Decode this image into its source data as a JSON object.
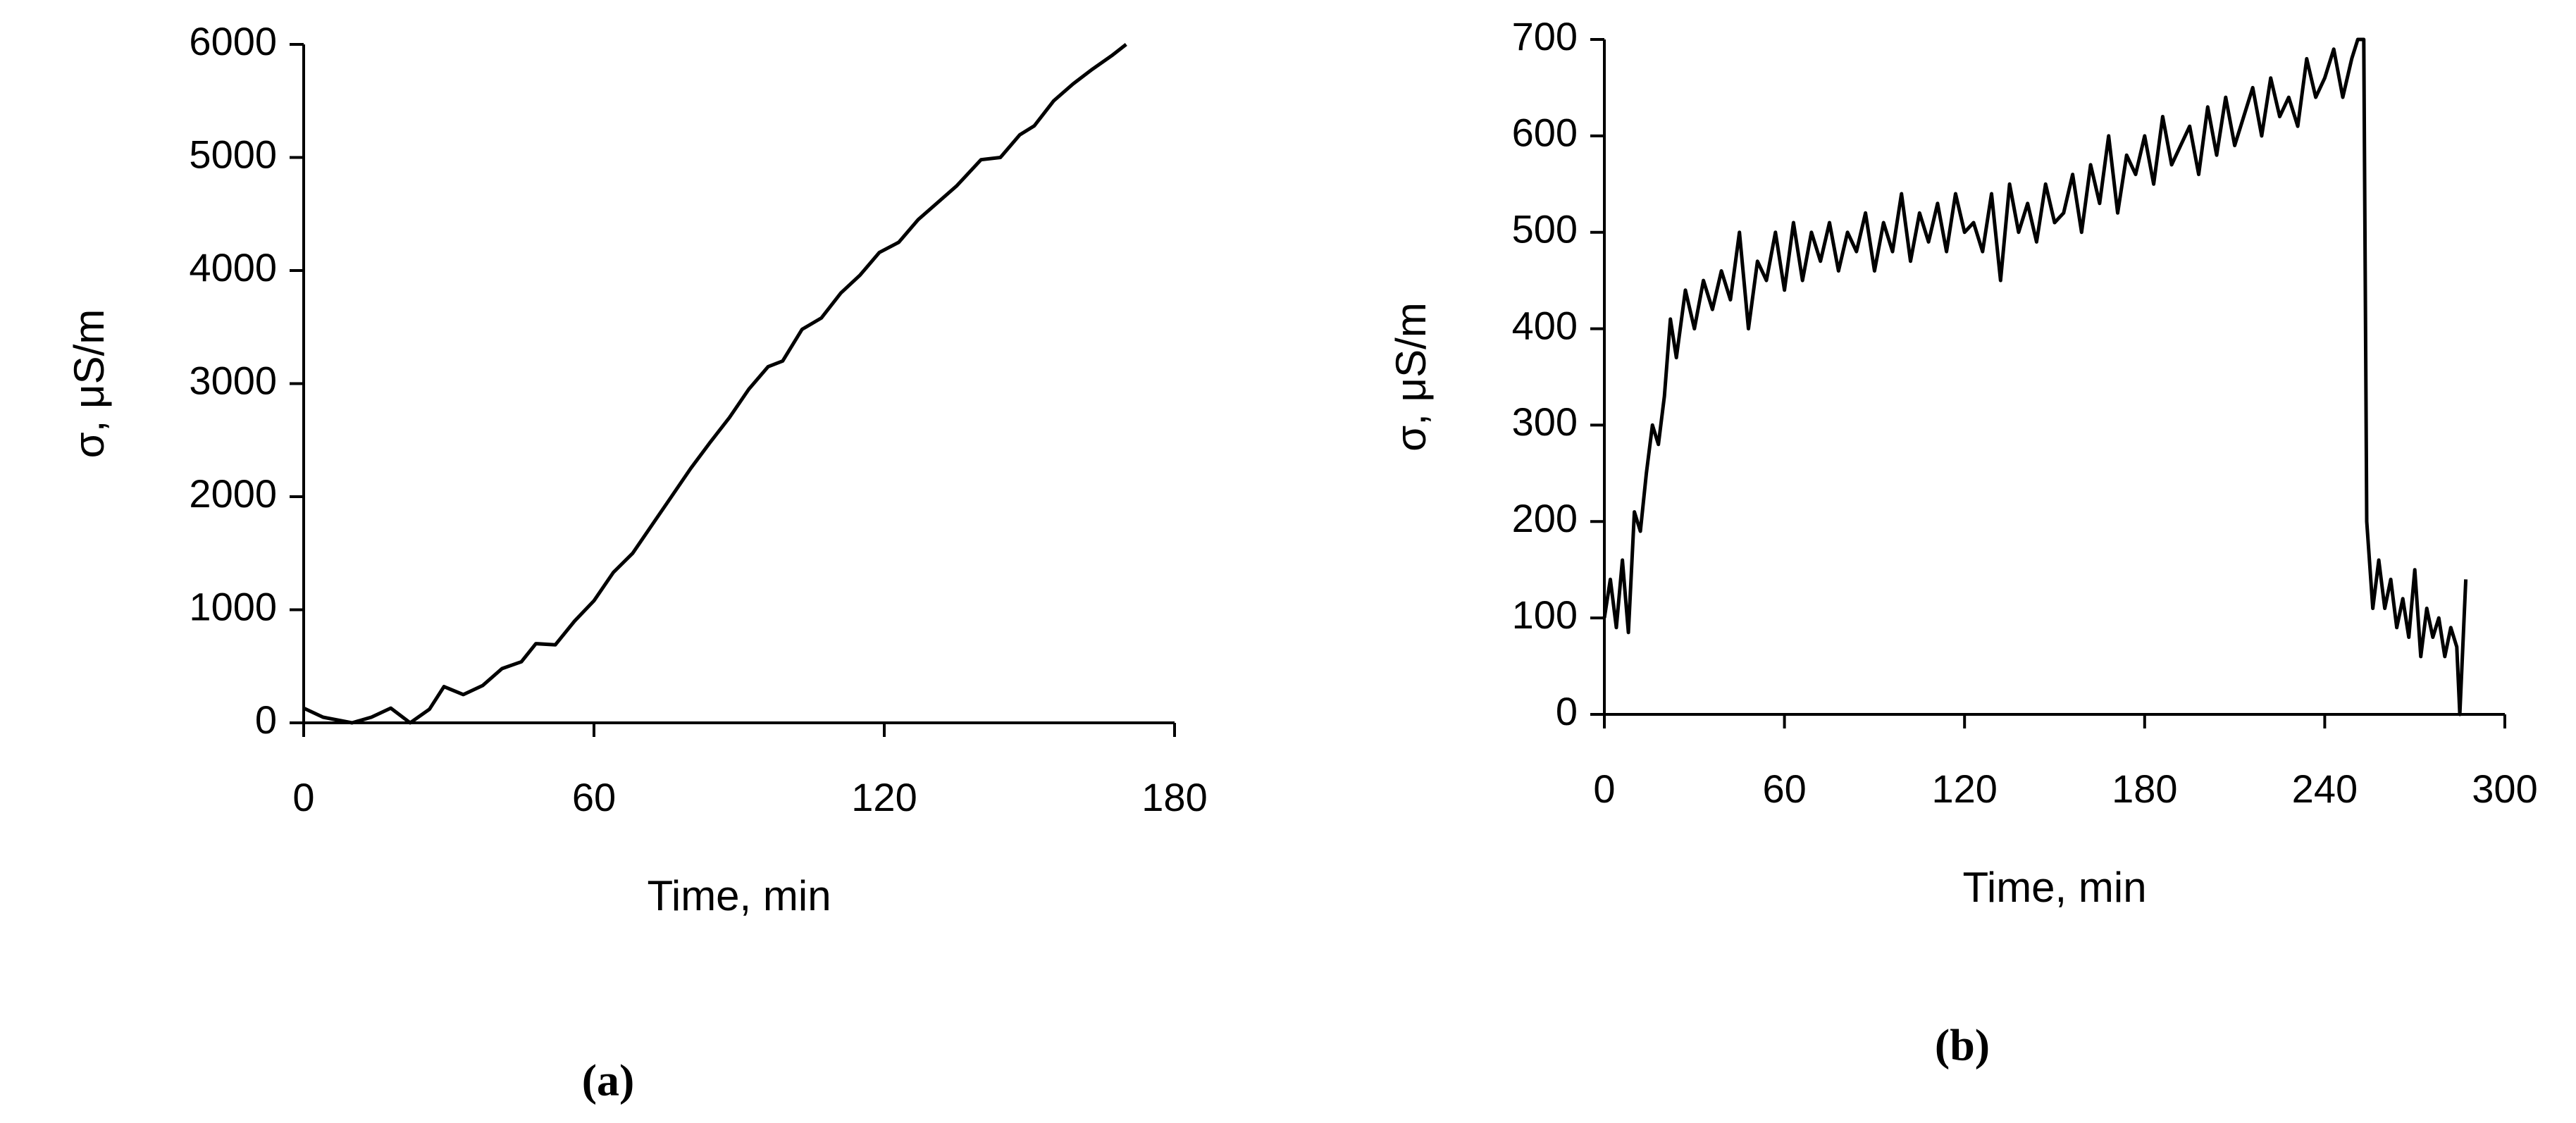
{
  "chart_data": [
    {
      "type": "line",
      "caption": "(a)",
      "xlabel": "Time, min",
      "ylabel": "σ, μS/m",
      "xlim": [
        0,
        180
      ],
      "xticks": [
        0,
        60,
        120,
        180
      ],
      "ylim": [
        0,
        6000
      ],
      "yticks": [
        0,
        1000,
        2000,
        3000,
        4000,
        5000,
        6000
      ],
      "series": [
        {
          "color": "#000000",
          "x": [
            0,
            4,
            10,
            14,
            18,
            22,
            26,
            29,
            33,
            37,
            41,
            45,
            48,
            52,
            56,
            60,
            64,
            68,
            72,
            76,
            80,
            84,
            88,
            92,
            96,
            99,
            103,
            107,
            111,
            115,
            119,
            123,
            127,
            131,
            135,
            140,
            144,
            148,
            151,
            155,
            159,
            163,
            167,
            170
          ],
          "values": [
            130,
            50,
            0,
            50,
            130,
            0,
            120,
            320,
            250,
            330,
            480,
            540,
            700,
            690,
            900,
            1080,
            1330,
            1500,
            1750,
            2000,
            2250,
            2480,
            2700,
            2950,
            3150,
            3200,
            3480,
            3580,
            3800,
            3960,
            4160,
            4250,
            4450,
            4600,
            4750,
            4980,
            5000,
            5200,
            5280,
            5500,
            5650,
            5780,
            5900,
            6000
          ]
        }
      ]
    },
    {
      "type": "line",
      "caption": "(b)",
      "xlabel": "Time, min",
      "ylabel": "σ, μS/m",
      "xlim": [
        0,
        300
      ],
      "xticks": [
        0,
        60,
        120,
        180,
        240,
        300
      ],
      "ylim": [
        0,
        700
      ],
      "yticks": [
        0,
        100,
        200,
        300,
        400,
        500,
        600,
        700
      ],
      "series": [
        {
          "color": "#000000",
          "x": [
            0,
            2,
            4,
            6,
            8,
            10,
            12,
            14,
            16,
            18,
            20,
            22,
            24,
            27,
            30,
            33,
            36,
            39,
            42,
            45,
            48,
            51,
            54,
            57,
            60,
            63,
            66,
            69,
            72,
            75,
            78,
            81,
            84,
            87,
            90,
            93,
            96,
            99,
            102,
            105,
            108,
            111,
            114,
            117,
            120,
            123,
            126,
            129,
            132,
            135,
            138,
            141,
            144,
            147,
            150,
            153,
            156,
            159,
            162,
            165,
            168,
            171,
            174,
            177,
            180,
            183,
            186,
            189,
            192,
            195,
            198,
            201,
            204,
            207,
            210,
            213,
            216,
            219,
            222,
            225,
            228,
            231,
            234,
            237,
            240,
            243,
            246,
            249,
            251,
            253,
            254,
            256,
            258,
            260,
            262,
            264,
            266,
            268,
            270,
            272,
            274,
            276,
            278,
            280,
            282,
            284,
            285,
            287
          ],
          "values": [
            100,
            140,
            90,
            160,
            85,
            210,
            190,
            250,
            300,
            280,
            330,
            410,
            370,
            440,
            400,
            450,
            420,
            460,
            430,
            500,
            400,
            470,
            450,
            500,
            440,
            510,
            450,
            500,
            470,
            510,
            460,
            500,
            480,
            520,
            460,
            510,
            480,
            540,
            470,
            520,
            490,
            530,
            480,
            540,
            500,
            510,
            480,
            540,
            450,
            550,
            500,
            530,
            490,
            550,
            510,
            520,
            560,
            500,
            570,
            530,
            600,
            520,
            580,
            560,
            600,
            550,
            620,
            570,
            590,
            610,
            560,
            630,
            580,
            640,
            590,
            620,
            650,
            600,
            660,
            620,
            640,
            610,
            680,
            640,
            660,
            690,
            640,
            680,
            700,
            700,
            200,
            110,
            160,
            110,
            140,
            90,
            120,
            80,
            150,
            60,
            110,
            80,
            100,
            60,
            90,
            70,
            0,
            140
          ]
        }
      ]
    }
  ]
}
